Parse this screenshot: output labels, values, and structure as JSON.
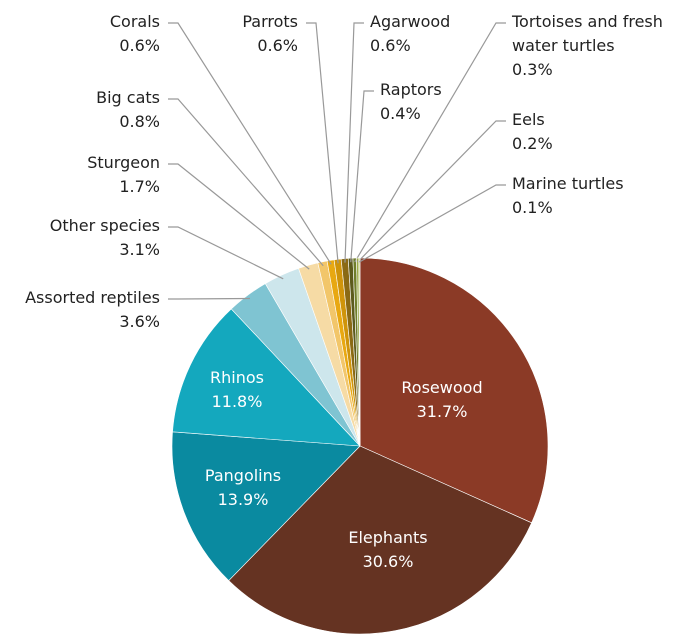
{
  "chart_data": {
    "type": "pie",
    "categories": [
      "Rosewood",
      "Elephants",
      "Pangolins",
      "Rhinos",
      "Assorted reptiles",
      "Other species",
      "Sturgeon",
      "Big cats",
      "Corals",
      "Parrots",
      "Agarwood",
      "Raptors",
      "Tortoises and fresh water turtles",
      "Eels",
      "Marine turtles"
    ],
    "values": [
      31.7,
      30.6,
      13.9,
      11.8,
      3.6,
      3.1,
      1.7,
      0.8,
      0.6,
      0.6,
      0.6,
      0.4,
      0.3,
      0.2,
      0.1
    ],
    "value_labels": [
      "31.7%",
      "30.6%",
      "13.9%",
      "11.8%",
      "3.6%",
      "3.1%",
      "1.7%",
      "0.8%",
      "0.6%",
      "0.6%",
      "0.6%",
      "0.4%",
      "0.3%",
      "0.2%",
      "0.1%"
    ],
    "colors": [
      "#8b3a26",
      "#653322",
      "#0a8aa0",
      "#14a8be",
      "#7fc4d2",
      "#cde6ec",
      "#f6dba5",
      "#f2c66a",
      "#e8a811",
      "#cf940a",
      "#8a6a14",
      "#5c5a1c",
      "#6f7d2a",
      "#9aa845",
      "#c6cf7a"
    ]
  }
}
